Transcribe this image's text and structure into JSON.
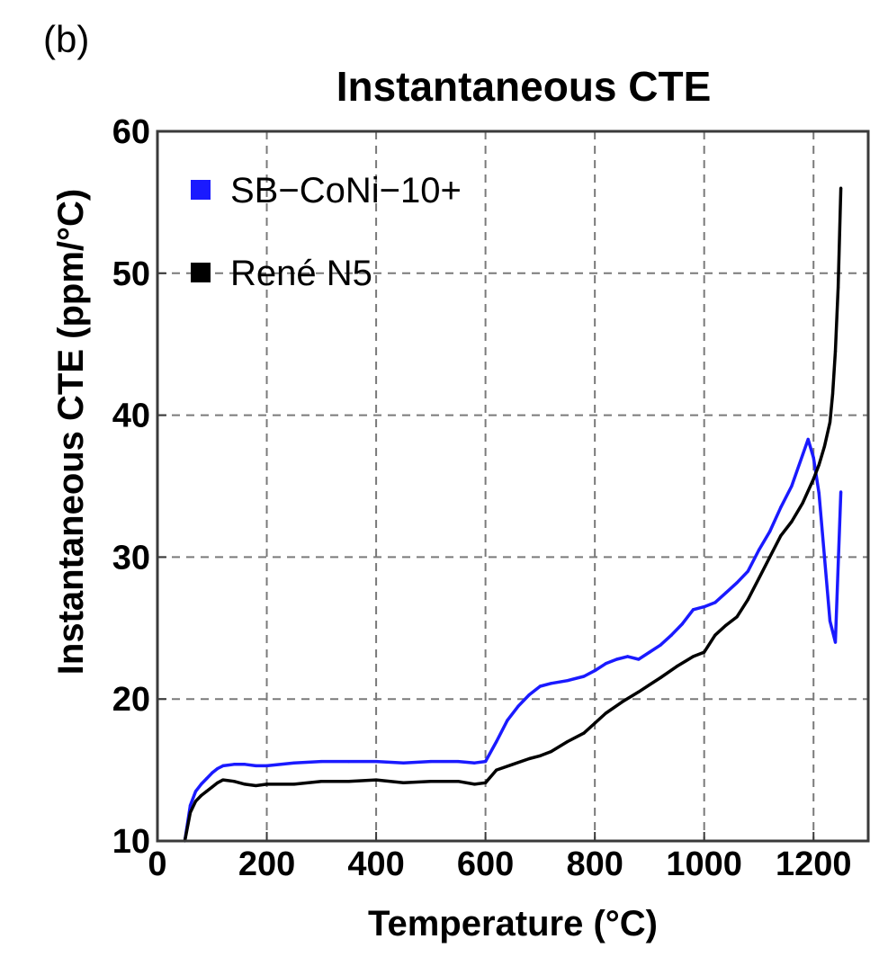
{
  "panel_label": "(b)",
  "chart_data": {
    "type": "line",
    "title": "Instantaneous CTE",
    "xlabel": "Temperature (°C)",
    "ylabel": "Instantaneous CTE  (ppm/°C)",
    "xlim": [
      0,
      1300
    ],
    "ylim": [
      10,
      60
    ],
    "xticks": [
      0,
      200,
      400,
      600,
      800,
      1000,
      1200
    ],
    "yticks": [
      10,
      20,
      30,
      40,
      50,
      60
    ],
    "xtick_labels": [
      "0",
      "200",
      "400",
      "600",
      "800",
      "1000",
      "1200"
    ],
    "ytick_labels": [
      "10",
      "20",
      "30",
      "40",
      "50",
      "60"
    ],
    "grid": true,
    "legend_position": "top-left",
    "series": [
      {
        "name": "SB−CoNi−10+",
        "color": "#1a1aff",
        "x": [
          50,
          60,
          70,
          80,
          90,
          100,
          110,
          120,
          140,
          160,
          180,
          200,
          250,
          300,
          350,
          400,
          450,
          500,
          550,
          580,
          600,
          620,
          640,
          660,
          680,
          700,
          720,
          750,
          780,
          800,
          820,
          840,
          860,
          880,
          900,
          920,
          940,
          960,
          980,
          1000,
          1020,
          1040,
          1060,
          1080,
          1100,
          1120,
          1140,
          1160,
          1180,
          1190,
          1200,
          1210,
          1220,
          1230,
          1240,
          1250
        ],
        "y": [
          10.0,
          12.5,
          13.5,
          14.0,
          14.4,
          14.8,
          15.1,
          15.3,
          15.4,
          15.4,
          15.3,
          15.3,
          15.5,
          15.6,
          15.6,
          15.6,
          15.5,
          15.6,
          15.6,
          15.5,
          15.6,
          17.0,
          18.5,
          19.5,
          20.3,
          20.9,
          21.1,
          21.3,
          21.6,
          22.0,
          22.5,
          22.8,
          23.0,
          22.8,
          23.3,
          23.8,
          24.5,
          25.3,
          26.3,
          26.5,
          26.8,
          27.5,
          28.2,
          29.0,
          30.5,
          31.8,
          33.5,
          35.0,
          37.2,
          38.3,
          37.0,
          34.5,
          30.0,
          25.5,
          24.0,
          34.6
        ]
      },
      {
        "name": "René N5",
        "color": "#000000",
        "x": [
          50,
          60,
          70,
          80,
          90,
          100,
          110,
          120,
          140,
          160,
          180,
          200,
          250,
          300,
          350,
          400,
          450,
          500,
          550,
          580,
          600,
          620,
          650,
          680,
          700,
          720,
          750,
          780,
          800,
          820,
          850,
          880,
          900,
          920,
          950,
          980,
          1000,
          1020,
          1040,
          1060,
          1080,
          1100,
          1120,
          1140,
          1160,
          1180,
          1200,
          1210,
          1220,
          1230,
          1235,
          1240,
          1245,
          1250
        ],
        "y": [
          10.0,
          12.0,
          12.8,
          13.2,
          13.5,
          13.8,
          14.1,
          14.3,
          14.2,
          14.0,
          13.9,
          14.0,
          14.0,
          14.2,
          14.2,
          14.3,
          14.1,
          14.2,
          14.2,
          14.0,
          14.1,
          15.0,
          15.4,
          15.8,
          16.0,
          16.3,
          17.0,
          17.6,
          18.3,
          19.0,
          19.8,
          20.5,
          21.0,
          21.5,
          22.3,
          23.0,
          23.3,
          24.5,
          25.2,
          25.8,
          27.0,
          28.5,
          30.0,
          31.5,
          32.5,
          33.8,
          35.5,
          36.5,
          37.8,
          39.5,
          41.5,
          44.5,
          49.0,
          56.0
        ]
      }
    ]
  }
}
